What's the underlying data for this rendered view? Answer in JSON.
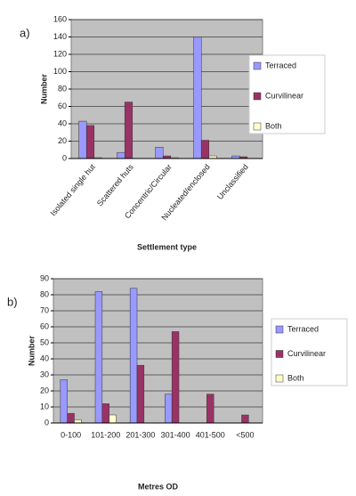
{
  "chart_data": [
    {
      "type": "bar",
      "panel_label": "a)",
      "x_label": "Settlement type",
      "y_label": "Number",
      "categories": [
        "Isolated single hut",
        "Scattered huts",
        "Concentric/Circular",
        "Nucleated/enclosed",
        "Unclassified"
      ],
      "series": [
        {
          "name": "Terraced",
          "color": "#9999ff",
          "values": [
            43,
            7,
            13,
            140,
            3
          ]
        },
        {
          "name": "Curvilinear",
          "color": "#993366",
          "values": [
            38,
            65,
            3,
            21,
            2
          ]
        },
        {
          "name": "Both",
          "color": "#ffffcc",
          "values": [
            1,
            0,
            1,
            3,
            0
          ]
        }
      ],
      "ylim": [
        0,
        160
      ],
      "yticks": [
        0,
        20,
        40,
        60,
        80,
        100,
        120,
        140,
        160
      ],
      "grid": true
    },
    {
      "type": "bar",
      "panel_label": "b)",
      "x_label": "Metres OD",
      "y_label": "Number",
      "categories": [
        "0-100",
        "101-200",
        "201-300",
        "301-400",
        "401-500",
        "<500"
      ],
      "series": [
        {
          "name": "Terraced",
          "color": "#9999ff",
          "values": [
            27,
            82,
            84,
            18,
            0,
            0
          ]
        },
        {
          "name": "Curvilinear",
          "color": "#993366",
          "values": [
            6,
            12,
            36,
            57,
            18,
            5
          ]
        },
        {
          "name": "Both",
          "color": "#ffffcc",
          "values": [
            2,
            5,
            0,
            0,
            0,
            0
          ]
        }
      ],
      "ylim": [
        0,
        90
      ],
      "yticks": [
        0,
        10,
        20,
        30,
        40,
        50,
        60,
        70,
        80,
        90
      ],
      "grid": true
    }
  ]
}
